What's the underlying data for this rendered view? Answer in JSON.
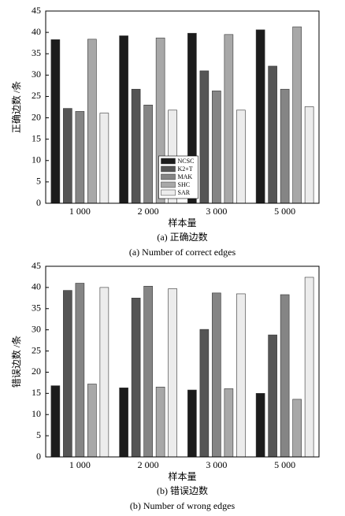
{
  "chart_data": [
    {
      "type": "bar",
      "xlabel": "样本量",
      "ylabel": "正确边数 /条",
      "captions": [
        "(a) 正确边数",
        "(a) Number of correct edges"
      ],
      "categories": [
        "1 000",
        "2 000",
        "3 000",
        "5 000"
      ],
      "series": [
        {
          "name": "NCSC",
          "color": "#1c1c1c",
          "values": [
            38.3,
            39.2,
            39.8,
            40.6
          ]
        },
        {
          "name": "K2+T",
          "color": "#555555",
          "values": [
            22.2,
            26.7,
            31.0,
            32.1
          ]
        },
        {
          "name": "MAK",
          "color": "#858585",
          "values": [
            21.5,
            23.0,
            26.3,
            26.7
          ]
        },
        {
          "name": "SHC",
          "color": "#a8a8a8",
          "values": [
            38.4,
            38.7,
            39.5,
            41.3
          ]
        },
        {
          "name": "SAR",
          "color": "#ececec",
          "values": [
            21.1,
            21.8,
            21.8,
            22.6
          ]
        }
      ],
      "ylim": [
        0,
        45
      ],
      "yticks": [
        0,
        5,
        10,
        15,
        20,
        25,
        30,
        35,
        40,
        45
      ],
      "legend": "lower center"
    },
    {
      "type": "bar",
      "xlabel": "样本量",
      "ylabel": "错误边数 /条",
      "captions": [
        "(b) 错误边数",
        "(b) Number of wrong edges"
      ],
      "categories": [
        "1 000",
        "2 000",
        "3 000",
        "5 000"
      ],
      "series": [
        {
          "color": "#1c1c1c",
          "values": [
            16.8,
            16.3,
            15.8,
            15.0
          ]
        },
        {
          "color": "#555555",
          "values": [
            39.3,
            37.5,
            30.1,
            28.8
          ]
        },
        {
          "color": "#858585",
          "values": [
            41.0,
            40.3,
            38.7,
            38.3
          ]
        },
        {
          "color": "#a8a8a8",
          "values": [
            17.2,
            16.5,
            16.1,
            13.6
          ]
        },
        {
          "color": "#ececec",
          "values": [
            40.0,
            39.7,
            38.5,
            42.4
          ]
        }
      ],
      "ylim": [
        0,
        45
      ],
      "yticks": [
        0,
        5,
        10,
        15,
        20,
        25,
        30,
        35,
        40,
        45
      ]
    }
  ]
}
